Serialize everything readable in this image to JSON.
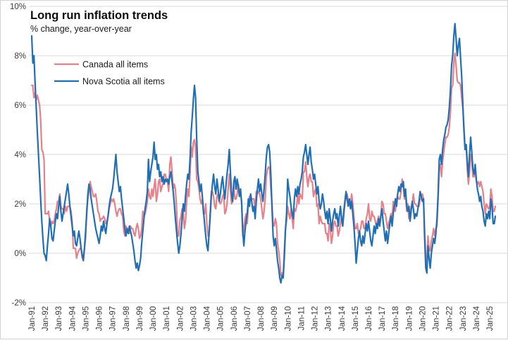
{
  "chart": {
    "title": "Long run inflation trends",
    "subtitle": "% change, year-over-year"
  },
  "chart_data": {
    "type": "line",
    "title": "Long run inflation trends",
    "subtitle": "% change, year-over-year",
    "x_start": "Jan-1991",
    "x_end": "Jun-2025",
    "x_frequency": "monthly",
    "x_tick_labels": [
      "Jan-91",
      "Jan-92",
      "Jan-93",
      "Jan-94",
      "Jan-95",
      "Jan-96",
      "Jan-97",
      "Jan-98",
      "Jan-99",
      "Jan-00",
      "Jan-01",
      "Jan-02",
      "Jan-03",
      "Jan-04",
      "Jan-05",
      "Jan-06",
      "Jan-07",
      "Jan-08",
      "Jan-09",
      "Jan-10",
      "Jan-11",
      "Jan-12",
      "Jan-13",
      "Jan-14",
      "Jan-15",
      "Jan-16",
      "Jan-17",
      "Jan-18",
      "Jan-19",
      "Jan-20",
      "Jan-21",
      "Jan-22",
      "Jan-23",
      "Jan-24",
      "Jan-25"
    ],
    "y_ticks": [
      10,
      8,
      6,
      4,
      2,
      0,
      -2
    ],
    "y_tick_labels": [
      "10%",
      "8%",
      "6%",
      "4%",
      "2%",
      "0%",
      "-2%"
    ],
    "ylim": [
      -2,
      10
    ],
    "grid": "horizontal",
    "gridline_color": "#d9d9d9",
    "axis_text_color": "#3b3b3b",
    "legend_position": "inside-top-left",
    "series": [
      {
        "name": "Canada all items",
        "color": "#e8808a",
        "values": [
          6.8,
          6.8,
          6.3,
          6.5,
          6.2,
          6.4,
          6.2,
          6.0,
          5.4,
          4.2,
          4.1,
          3.8,
          1.6,
          1.6,
          1.6,
          1.7,
          1.3,
          1.1,
          1.3,
          1.2,
          1.3,
          1.6,
          1.8,
          2.1,
          2.1,
          2.4,
          1.9,
          1.8,
          1.8,
          1.6,
          1.9,
          1.7,
          1.9,
          1.9,
          1.9,
          1.7,
          1.3,
          0.2,
          0.2,
          0.2,
          -0.2,
          0.0,
          0.1,
          0.2,
          0.2,
          -0.2,
          -0.1,
          0.2,
          0.6,
          1.8,
          2.2,
          2.5,
          2.9,
          2.7,
          2.5,
          2.3,
          2.3,
          2.4,
          2.1,
          1.7,
          1.6,
          1.3,
          1.4,
          1.4,
          1.5,
          1.4,
          1.2,
          1.3,
          1.5,
          1.8,
          2.0,
          2.2,
          2.1,
          2.2,
          2.0,
          1.7,
          1.5,
          1.7,
          1.8,
          1.8,
          1.6,
          1.5,
          0.9,
          0.7,
          1.1,
          1.0,
          0.9,
          0.8,
          1.1,
          1.0,
          1.0,
          0.8,
          0.7,
          1.0,
          1.2,
          1.0,
          0.6,
          0.7,
          1.0,
          1.7,
          1.5,
          1.6,
          1.8,
          2.1,
          2.6,
          2.3,
          2.2,
          2.6,
          2.3,
          2.7,
          3.0,
          2.1,
          2.4,
          2.9,
          3.0,
          2.5,
          2.7,
          2.8,
          3.2,
          3.2,
          3.0,
          2.9,
          2.5,
          3.6,
          3.9,
          3.3,
          2.6,
          2.8,
          2.6,
          1.9,
          0.7,
          0.7,
          1.3,
          1.5,
          1.8,
          1.7,
          1.0,
          1.3,
          2.1,
          2.6,
          2.3,
          3.2,
          4.3,
          3.9,
          4.5,
          4.6,
          4.3,
          3.0,
          2.9,
          2.6,
          2.2,
          2.0,
          2.2,
          1.6,
          1.6,
          2.0,
          1.2,
          0.7,
          0.7,
          1.6,
          2.5,
          2.5,
          2.3,
          1.9,
          1.8,
          2.3,
          2.4,
          2.1,
          2.0,
          2.1,
          2.3,
          2.4,
          1.6,
          1.7,
          2.0,
          2.6,
          3.2,
          2.6,
          2.0,
          2.1,
          2.8,
          2.2,
          2.2,
          2.4,
          2.8,
          2.5,
          2.4,
          2.1,
          0.7,
          1.0,
          1.4,
          1.6,
          1.2,
          2.0,
          2.3,
          2.2,
          2.2,
          2.2,
          2.2,
          1.7,
          2.5,
          2.4,
          2.5,
          2.4,
          2.2,
          1.8,
          1.4,
          1.7,
          2.2,
          3.1,
          3.4,
          3.5,
          3.4,
          2.6,
          2.0,
          1.2,
          1.1,
          1.4,
          1.2,
          0.4,
          0.1,
          -0.3,
          -0.9,
          -0.8,
          -0.9,
          0.1,
          1.0,
          1.3,
          1.9,
          1.6,
          1.4,
          1.8,
          1.4,
          1.0,
          1.8,
          1.7,
          1.9,
          2.4,
          2.0,
          2.4,
          2.3,
          2.2,
          3.3,
          3.3,
          3.7,
          3.1,
          2.7,
          3.1,
          3.2,
          2.9,
          2.9,
          2.3,
          2.5,
          2.6,
          1.9,
          2.0,
          1.2,
          1.5,
          1.3,
          1.2,
          1.2,
          1.2,
          0.8,
          0.8,
          0.5,
          1.2,
          1.0,
          0.4,
          0.7,
          1.2,
          1.3,
          1.1,
          1.1,
          0.7,
          0.9,
          1.2,
          1.5,
          1.1,
          1.5,
          2.0,
          2.3,
          2.4,
          2.1,
          2.1,
          2.0,
          2.4,
          2.0,
          1.5,
          1.0,
          1.0,
          1.2,
          0.8,
          0.9,
          1.0,
          1.3,
          1.3,
          1.0,
          1.0,
          1.4,
          1.6,
          2.0,
          1.4,
          1.3,
          1.7,
          1.5,
          1.5,
          1.3,
          1.1,
          1.3,
          1.5,
          1.2,
          1.5,
          2.1,
          2.0,
          1.6,
          1.6,
          1.3,
          1.0,
          1.2,
          1.4,
          1.6,
          1.4,
          2.1,
          1.9,
          1.7,
          2.2,
          2.3,
          2.2,
          2.2,
          2.5,
          3.0,
          2.8,
          2.2,
          2.4,
          1.7,
          2.0,
          1.4,
          1.5,
          1.9,
          2.0,
          2.4,
          2.0,
          2.0,
          1.9,
          1.9,
          1.9,
          2.2,
          2.2,
          2.4,
          2.2,
          0.9,
          -0.2,
          -0.4,
          0.7,
          0.1,
          0.1,
          0.5,
          0.7,
          1.0,
          0.7,
          1.0,
          1.1,
          2.2,
          3.4,
          3.6,
          3.1,
          3.7,
          4.1,
          4.4,
          4.7,
          4.7,
          4.8,
          5.1,
          5.7,
          6.7,
          6.8,
          7.7,
          8.1,
          7.6,
          7.0,
          6.9,
          6.9,
          6.8,
          6.3,
          5.9,
          5.2,
          4.3,
          4.4,
          3.4,
          2.8,
          3.3,
          4.0,
          3.8,
          3.1,
          3.1,
          3.4,
          2.9,
          2.8,
          2.9,
          2.7,
          2.9,
          2.7,
          2.5,
          2.0,
          1.6,
          2.0,
          1.9,
          1.8,
          1.9,
          2.6,
          2.3,
          1.7,
          1.7,
          1.9
        ]
      },
      {
        "name": "Nova Scotia all items",
        "color": "#1f6fb5",
        "values": [
          8.8,
          7.7,
          8.0,
          6.9,
          5.9,
          4.9,
          4.0,
          3.1,
          2.2,
          1.3,
          0.6,
          0.0,
          -0.1,
          -0.3,
          0.3,
          0.8,
          1.4,
          1.1,
          0.6,
          0.5,
          0.9,
          1.3,
          1.6,
          1.4,
          1.9,
          2.3,
          1.7,
          1.3,
          1.6,
          1.9,
          2.2,
          2.5,
          2.8,
          2.4,
          1.9,
          1.5,
          1.1,
          0.7,
          0.9,
          0.4,
          0.3,
          0.6,
          0.9,
          0.6,
          0.2,
          -0.1,
          -0.3,
          0.2,
          0.9,
          1.6,
          2.4,
          2.8,
          2.6,
          2.2,
          1.9,
          1.6,
          1.3,
          1.0,
          0.8,
          0.6,
          0.4,
          0.7,
          1.1,
          0.9,
          1.3,
          1.0,
          0.8,
          1.2,
          1.5,
          1.9,
          2.2,
          2.4,
          2.6,
          3.0,
          3.5,
          4.0,
          3.3,
          2.9,
          2.5,
          2.7,
          2.2,
          1.8,
          1.4,
          1.0,
          0.7,
          1.0,
          0.8,
          1.1,
          0.9,
          0.7,
          0.4,
          0.1,
          -0.3,
          -0.6,
          -0.4,
          -0.7,
          -0.5,
          -0.2,
          0.4,
          0.9,
          1.4,
          1.8,
          2.1,
          2.5,
          3.8,
          2.9,
          3.3,
          3.6,
          3.9,
          4.5,
          3.8,
          4.0,
          3.4,
          3.6,
          3.1,
          3.3,
          2.9,
          3.1,
          2.8,
          3.0,
          2.9,
          3.0,
          2.8,
          3.1,
          3.3,
          2.9,
          2.5,
          2.0,
          1.4,
          0.9,
          0.4,
          0.0,
          0.3,
          0.8,
          1.4,
          2.0,
          1.7,
          2.3,
          2.8,
          3.2,
          3.0,
          3.8,
          4.9,
          5.5,
          6.2,
          6.8,
          6.3,
          4.6,
          3.3,
          2.9,
          2.5,
          2.8,
          2.3,
          1.7,
          1.2,
          0.7,
          0.3,
          0.1,
          0.8,
          1.5,
          2.3,
          2.8,
          3.2,
          2.7,
          2.4,
          3.0,
          2.6,
          2.1,
          2.4,
          2.8,
          3.1,
          2.6,
          2.2,
          2.7,
          3.2,
          3.6,
          4.2,
          3.3,
          2.4,
          2.1,
          2.9,
          3.1,
          2.6,
          3.0,
          2.7,
          2.3,
          2.6,
          2.0,
          0.9,
          0.3,
          0.9,
          1.3,
          1.6,
          2.2,
          1.9,
          2.4,
          2.1,
          1.7,
          1.9,
          1.4,
          2.1,
          2.6,
          3.0,
          2.5,
          2.8,
          2.4,
          2.1,
          2.6,
          3.2,
          3.9,
          4.3,
          4.4,
          4.1,
          3.2,
          1.9,
          0.7,
          0.3,
          0.6,
          0.2,
          -0.3,
          -0.6,
          -1.0,
          -1.2,
          -0.9,
          -1.0,
          -0.2,
          0.9,
          1.6,
          3.0,
          2.6,
          2.3,
          1.9,
          1.6,
          1.4,
          2.2,
          2.6,
          2.3,
          2.7,
          2.4,
          2.8,
          3.0,
          3.3,
          3.9,
          4.1,
          4.4,
          4.0,
          3.6,
          4.0,
          4.3,
          3.7,
          3.4,
          3.0,
          3.2,
          2.8,
          2.4,
          2.7,
          2.1,
          1.8,
          2.0,
          2.4,
          2.1,
          1.7,
          1.4,
          1.7,
          1.2,
          1.8,
          1.4,
          0.9,
          1.3,
          1.6,
          1.8,
          1.4,
          1.6,
          1.1,
          1.5,
          1.9,
          1.4,
          1.1,
          1.7,
          2.1,
          2.5,
          2.2,
          1.9,
          2.2,
          1.8,
          2.1,
          1.6,
          1.1,
          0.4,
          -0.4,
          0.1,
          0.6,
          0.9,
          0.5,
          0.3,
          0.7,
          0.4,
          0.8,
          1.2,
          0.9,
          1.3,
          0.9,
          0.5,
          0.3,
          0.7,
          1.1,
          0.8,
          1.2,
          1.0,
          1.4,
          1.1,
          1.5,
          1.8,
          1.3,
          0.9,
          0.5,
          0.9,
          0.4,
          0.8,
          1.2,
          1.5,
          1.1,
          1.6,
          1.9,
          2.2,
          1.9,
          2.4,
          2.7,
          2.5,
          2.8,
          2.7,
          2.9,
          2.3,
          2.6,
          1.9,
          1.7,
          1.9,
          1.3,
          1.7,
          2.1,
          1.8,
          1.4,
          1.6,
          1.5,
          1.8,
          2.1,
          2.5,
          2.3,
          2.1,
          2.2,
          0.6,
          -0.6,
          -0.8,
          0.3,
          -0.2,
          -0.6,
          0.0,
          0.3,
          0.6,
          0.4,
          0.8,
          1.4,
          2.4,
          3.8,
          4.0,
          3.6,
          4.2,
          4.6,
          4.8,
          5.1,
          5.2,
          5.4,
          5.9,
          6.6,
          7.6,
          8.0,
          8.8,
          9.3,
          8.7,
          8.0,
          8.4,
          8.7,
          7.9,
          7.2,
          6.1,
          5.0,
          4.2,
          4.4,
          3.7,
          3.1,
          4.0,
          4.7,
          4.1,
          3.4,
          3.2,
          3.6,
          3.0,
          2.6,
          2.4,
          2.1,
          2.3,
          1.9,
          1.7,
          1.3,
          1.1,
          1.6,
          1.4,
          1.7,
          1.4,
          2.2,
          1.9,
          1.2,
          1.2,
          1.5
        ]
      }
    ]
  }
}
